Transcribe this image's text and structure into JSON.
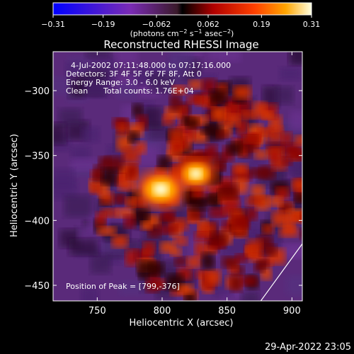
{
  "colorbar": {
    "ticks": [
      {
        "value": -0.31,
        "label": "−0.31"
      },
      {
        "value": -0.19,
        "label": "−0.19"
      },
      {
        "value": -0.062,
        "label": "−0.062"
      },
      {
        "value": 0.062,
        "label": "0.062"
      },
      {
        "value": 0.19,
        "label": "0.19"
      },
      {
        "value": 0.31,
        "label": "0.31"
      }
    ],
    "range": [
      -0.31,
      0.31
    ],
    "units_text": "(photons cm",
    "units_parts": [
      "(photons cm",
      "−2",
      " s",
      "−1",
      " asec",
      "−2",
      ")"
    ]
  },
  "chart_data": {
    "type": "heatmap",
    "title": "Reconstructed RHESSI Image",
    "xlabel": "Heliocentric X (arcsec)",
    "ylabel": "Heliocentric Y (arcsec)",
    "xlim": [
      716,
      908
    ],
    "ylim": [
      -462,
      -270
    ],
    "x_ticks": [
      {
        "value": 750,
        "label": "750"
      },
      {
        "value": 800,
        "label": "800"
      },
      {
        "value": 850,
        "label": "850"
      },
      {
        "value": 900,
        "label": "900"
      }
    ],
    "y_ticks": [
      {
        "value": -300,
        "label": "−300"
      },
      {
        "value": -350,
        "label": "−350"
      },
      {
        "value": -400,
        "label": "−400"
      },
      {
        "value": -450,
        "label": "−450"
      }
    ],
    "sources": [
      {
        "x": 799,
        "y": -376,
        "peak": 0.31
      },
      {
        "x": 826,
        "y": -364,
        "peak": 0.25
      }
    ],
    "limb": [
      [
        876,
        -462
      ],
      [
        908,
        -418
      ],
      [
        932,
        -378
      ],
      [
        954,
        -338
      ],
      [
        971,
        -300
      ],
      [
        985,
        -270
      ]
    ],
    "annotations": [
      "4-Jul-2002 07:11:48.000 to 07:17:16.000",
      "Detectors: 3F 4F 5F 6F 7F 8F, Att 0",
      "Energy Range: 3.0 - 6.0 keV",
      "Clean",
      "Total counts: 1.76E+04",
      "Position of Peak = [799,-376]"
    ]
  },
  "footer": {
    "timestamp": "29-Apr-2022 23:05"
  }
}
